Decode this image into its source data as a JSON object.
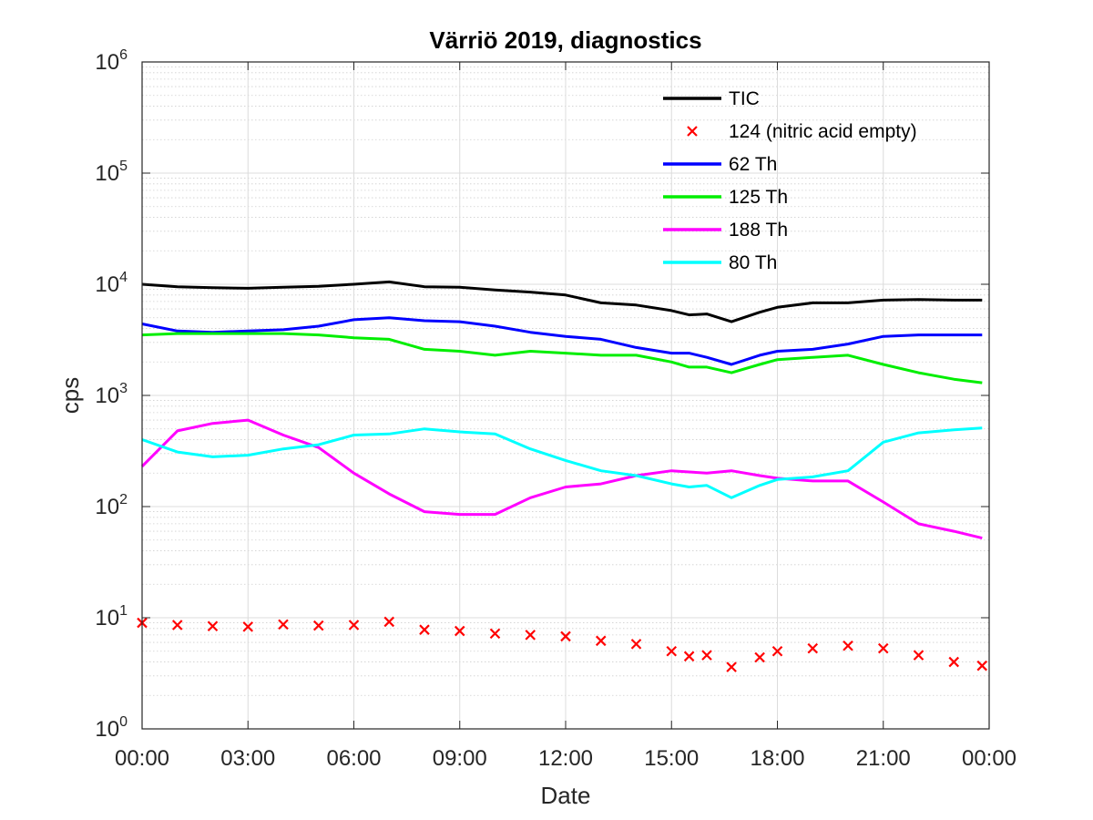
{
  "chart_data": {
    "type": "line",
    "title": "Värriö 2019, diagnostics",
    "xlabel": "Date",
    "ylabel": "cps",
    "xlim_hours": [
      0,
      24
    ],
    "ylim": [
      1,
      1000000
    ],
    "yscale": "log",
    "grid": true,
    "minor_grid": true,
    "legend_position": "top-right",
    "xticks": [
      "00:00",
      "03:00",
      "06:00",
      "09:00",
      "12:00",
      "15:00",
      "18:00",
      "21:00",
      "00:00"
    ],
    "yticks": [
      {
        "base": "10",
        "exp": "0"
      },
      {
        "base": "10",
        "exp": "1"
      },
      {
        "base": "10",
        "exp": "2"
      },
      {
        "base": "10",
        "exp": "3"
      },
      {
        "base": "10",
        "exp": "4"
      },
      {
        "base": "10",
        "exp": "5"
      },
      {
        "base": "10",
        "exp": "6"
      }
    ],
    "x_hours": [
      0,
      1,
      2,
      3,
      4,
      5,
      6,
      7,
      8,
      9,
      10,
      11,
      12,
      13,
      14,
      15,
      15.5,
      16,
      16.7,
      17.5,
      18,
      19,
      20,
      21,
      22,
      23,
      23.8
    ],
    "series": [
      {
        "name": "TIC",
        "color": "#000000",
        "style": "line",
        "values": [
          10000,
          9500,
          9300,
          9200,
          9400,
          9600,
          10000,
          10500,
          9500,
          9400,
          8900,
          8500,
          8000,
          6800,
          6500,
          5800,
          5300,
          5400,
          4600,
          5600,
          6200,
          6800,
          6800,
          7200,
          7300,
          7200,
          7200
        ]
      },
      {
        "name": "124 (nitric acid empty)",
        "color": "#ff0000",
        "style": "marker",
        "values": [
          9.0,
          8.6,
          8.4,
          8.3,
          8.7,
          8.5,
          8.6,
          9.2,
          7.8,
          7.6,
          7.2,
          7.0,
          6.8,
          6.2,
          5.8,
          5.0,
          4.5,
          4.6,
          3.6,
          4.4,
          5.0,
          5.3,
          5.6,
          5.3,
          4.6,
          4.0,
          3.7
        ]
      },
      {
        "name": "62 Th",
        "color": "#0000ff",
        "style": "line",
        "values": [
          4400,
          3800,
          3700,
          3800,
          3900,
          4200,
          4800,
          5000,
          4700,
          4600,
          4200,
          3700,
          3400,
          3200,
          2700,
          2400,
          2400,
          2200,
          1900,
          2300,
          2500,
          2600,
          2900,
          3400,
          3500,
          3500,
          3500
        ]
      },
      {
        "name": "125 Th",
        "color": "#00ee00",
        "style": "line",
        "values": [
          3500,
          3600,
          3600,
          3600,
          3600,
          3500,
          3300,
          3200,
          2600,
          2500,
          2300,
          2500,
          2400,
          2300,
          2300,
          2000,
          1800,
          1800,
          1600,
          1900,
          2100,
          2200,
          2300,
          1900,
          1600,
          1400,
          1300
        ]
      },
      {
        "name": "188 Th",
        "color": "#ff00ff",
        "style": "line",
        "values": [
          230,
          480,
          560,
          600,
          440,
          340,
          200,
          130,
          90,
          85,
          85,
          120,
          150,
          160,
          190,
          210,
          205,
          200,
          210,
          190,
          180,
          170,
          170,
          110,
          70,
          60,
          52
        ]
      },
      {
        "name": "80 Th",
        "color": "#00ffff",
        "style": "line",
        "values": [
          400,
          310,
          280,
          290,
          330,
          360,
          440,
          450,
          500,
          470,
          450,
          330,
          260,
          210,
          190,
          160,
          150,
          155,
          120,
          155,
          175,
          185,
          210,
          380,
          460,
          490,
          510
        ]
      }
    ]
  }
}
